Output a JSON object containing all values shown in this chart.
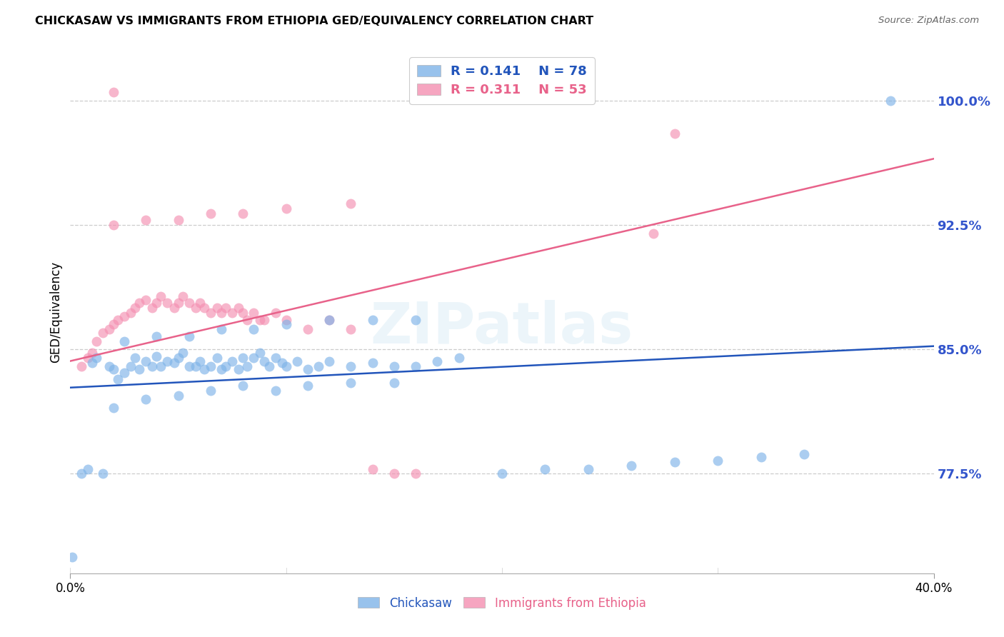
{
  "title": "CHICKASAW VS IMMIGRANTS FROM ETHIOPIA GED/EQUIVALENCY CORRELATION CHART",
  "source": "Source: ZipAtlas.com",
  "ylabel": "GED/Equivalency",
  "ytick_vals": [
    0.775,
    0.85,
    0.925,
    1.0
  ],
  "ytick_labels": [
    "77.5%",
    "85.0%",
    "92.5%",
    "100.0%"
  ],
  "xmin": 0.0,
  "xmax": 0.4,
  "ymin": 0.715,
  "ymax": 1.03,
  "blue_color": "#7EB3E8",
  "pink_color": "#F48FB1",
  "blue_line_color": "#2255BB",
  "pink_line_color": "#E8628A",
  "tick_label_color": "#3355CC",
  "watermark": "ZIPatlas",
  "blue_trend_x": [
    0.0,
    0.4
  ],
  "blue_trend_y": [
    0.827,
    0.852
  ],
  "pink_trend_x": [
    0.0,
    0.4
  ],
  "pink_trend_y": [
    0.843,
    0.965
  ],
  "blue_x": [
    0.001,
    0.005,
    0.008,
    0.01,
    0.012,
    0.015,
    0.018,
    0.02,
    0.022,
    0.025,
    0.028,
    0.03,
    0.032,
    0.035,
    0.038,
    0.04,
    0.042,
    0.045,
    0.048,
    0.05,
    0.052,
    0.055,
    0.058,
    0.06,
    0.062,
    0.065,
    0.068,
    0.07,
    0.072,
    0.075,
    0.078,
    0.08,
    0.082,
    0.085,
    0.088,
    0.09,
    0.092,
    0.095,
    0.098,
    0.1,
    0.105,
    0.11,
    0.115,
    0.12,
    0.13,
    0.14,
    0.15,
    0.16,
    0.17,
    0.18,
    0.02,
    0.035,
    0.05,
    0.065,
    0.08,
    0.095,
    0.11,
    0.13,
    0.15,
    0.025,
    0.04,
    0.055,
    0.07,
    0.085,
    0.1,
    0.12,
    0.14,
    0.16,
    0.2,
    0.22,
    0.24,
    0.26,
    0.28,
    0.3,
    0.32,
    0.34,
    0.38
  ],
  "blue_y": [
    0.725,
    0.775,
    0.778,
    0.842,
    0.845,
    0.775,
    0.84,
    0.838,
    0.832,
    0.836,
    0.84,
    0.845,
    0.838,
    0.843,
    0.84,
    0.846,
    0.84,
    0.843,
    0.842,
    0.845,
    0.848,
    0.84,
    0.84,
    0.843,
    0.838,
    0.84,
    0.845,
    0.838,
    0.84,
    0.843,
    0.838,
    0.845,
    0.84,
    0.845,
    0.848,
    0.843,
    0.84,
    0.845,
    0.842,
    0.84,
    0.843,
    0.838,
    0.84,
    0.843,
    0.84,
    0.842,
    0.84,
    0.84,
    0.843,
    0.845,
    0.815,
    0.82,
    0.822,
    0.825,
    0.828,
    0.825,
    0.828,
    0.83,
    0.83,
    0.855,
    0.858,
    0.858,
    0.862,
    0.862,
    0.865,
    0.868,
    0.868,
    0.868,
    0.775,
    0.778,
    0.778,
    0.78,
    0.782,
    0.783,
    0.785,
    0.787,
    1.0
  ],
  "pink_x": [
    0.005,
    0.008,
    0.01,
    0.012,
    0.015,
    0.018,
    0.02,
    0.022,
    0.025,
    0.028,
    0.03,
    0.032,
    0.035,
    0.038,
    0.04,
    0.042,
    0.045,
    0.048,
    0.05,
    0.052,
    0.055,
    0.058,
    0.06,
    0.062,
    0.065,
    0.068,
    0.07,
    0.072,
    0.075,
    0.078,
    0.08,
    0.082,
    0.085,
    0.088,
    0.09,
    0.095,
    0.1,
    0.11,
    0.12,
    0.13,
    0.02,
    0.035,
    0.05,
    0.065,
    0.08,
    0.1,
    0.13,
    0.14,
    0.15,
    0.16,
    0.27,
    0.28,
    0.02
  ],
  "pink_y": [
    0.84,
    0.845,
    0.848,
    0.855,
    0.86,
    0.862,
    0.865,
    0.868,
    0.87,
    0.872,
    0.875,
    0.878,
    0.88,
    0.875,
    0.878,
    0.882,
    0.878,
    0.875,
    0.878,
    0.882,
    0.878,
    0.875,
    0.878,
    0.875,
    0.872,
    0.875,
    0.872,
    0.875,
    0.872,
    0.875,
    0.872,
    0.868,
    0.872,
    0.868,
    0.868,
    0.872,
    0.868,
    0.862,
    0.868,
    0.862,
    0.925,
    0.928,
    0.928,
    0.932,
    0.932,
    0.935,
    0.938,
    0.778,
    0.775,
    0.775,
    0.92,
    0.98,
    1.005
  ]
}
